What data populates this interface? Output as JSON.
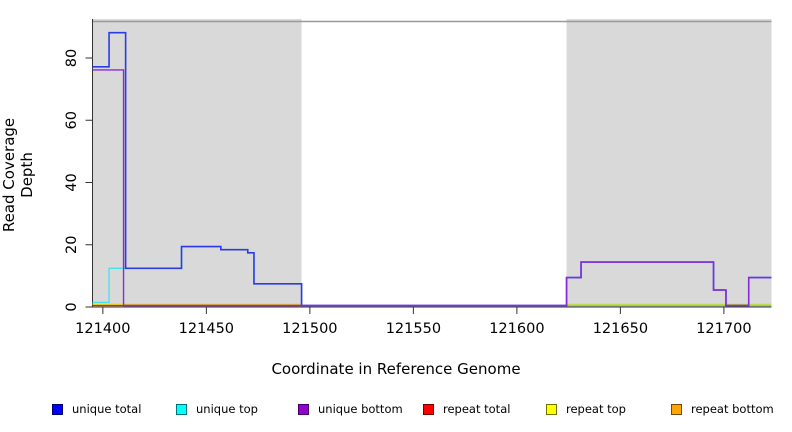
{
  "chart_data": {
    "type": "line",
    "subtype": "step-coverage",
    "title": "",
    "xlabel": "Coordinate in Reference Genome",
    "ylabel": "Read Coverage Depth",
    "xlim": [
      121395,
      121723
    ],
    "ylim": [
      0,
      93
    ],
    "x_ticks": [
      121400,
      121450,
      121500,
      121550,
      121600,
      121650,
      121700
    ],
    "y_ticks": [
      0,
      20,
      40,
      60,
      80
    ],
    "grid": false,
    "legend_position": "bottom",
    "repeat_region_color": "#D9D9D9",
    "repeat_regions": [
      {
        "from": 121395,
        "to": 121496
      },
      {
        "from": 121624,
        "to": 121723
      }
    ],
    "series": [
      {
        "name": "repeat top",
        "legend_color": "#FFFF00",
        "line_color": "#E8E800",
        "points": [
          [
            121395,
            0.45
          ],
          [
            121496,
            null
          ],
          [
            121624,
            0.45
          ],
          [
            121723,
            null
          ]
        ]
      },
      {
        "name": "repeat bottom",
        "legend_color": "#FFA500",
        "line_color": "#FFA520",
        "points": [
          [
            121397,
            0
          ],
          [
            121410,
            null
          ]
        ]
      },
      {
        "name": "repeat total",
        "legend_color": "#FF0000",
        "line_color": "#E02020",
        "points": [
          [
            121395,
            0
          ],
          [
            121496,
            null
          ],
          [
            121624,
            0
          ],
          [
            121723,
            null
          ]
        ]
      },
      {
        "name": "unique top",
        "legend_color": "#00FFFF",
        "line_color": "#45E2EA",
        "points": [
          [
            121395,
            1
          ],
          [
            121403,
            12
          ],
          [
            121438,
            19
          ],
          [
            121457,
            18
          ],
          [
            121470,
            17
          ],
          [
            121473,
            7
          ],
          [
            121496,
            0
          ],
          [
            121723,
            null
          ]
        ]
      },
      {
        "name": "unique total",
        "legend_color": "#0000FF",
        "line_color": "#2B3BE8",
        "points": [
          [
            121395,
            77
          ],
          [
            121403,
            88
          ],
          [
            121411,
            12
          ],
          [
            121438,
            19
          ],
          [
            121457,
            18
          ],
          [
            121470,
            17
          ],
          [
            121473,
            7
          ],
          [
            121496,
            0
          ],
          [
            121624,
            9
          ],
          [
            121631,
            14
          ],
          [
            121695,
            5
          ],
          [
            121701,
            0
          ],
          [
            121712,
            9
          ],
          [
            121723,
            null
          ]
        ]
      },
      {
        "name": "unique bottom",
        "legend_color": "#9400D3",
        "line_color": "#8B2BD8",
        "points": [
          [
            121395,
            76
          ],
          [
            121410,
            0
          ],
          [
            121624,
            9
          ],
          [
            121631,
            14
          ],
          [
            121695,
            5
          ],
          [
            121701,
            0
          ],
          [
            121712,
            9
          ],
          [
            121723,
            null
          ]
        ]
      }
    ],
    "baseline_blend_segments": [
      {
        "from": 121410,
        "to": 121496,
        "color": "#D85A78"
      },
      {
        "from": 121624,
        "to": 121723,
        "color": "#8FD48F"
      }
    ],
    "legend_order": [
      "unique total",
      "unique top",
      "unique bottom",
      "repeat total",
      "repeat top",
      "repeat bottom"
    ]
  }
}
